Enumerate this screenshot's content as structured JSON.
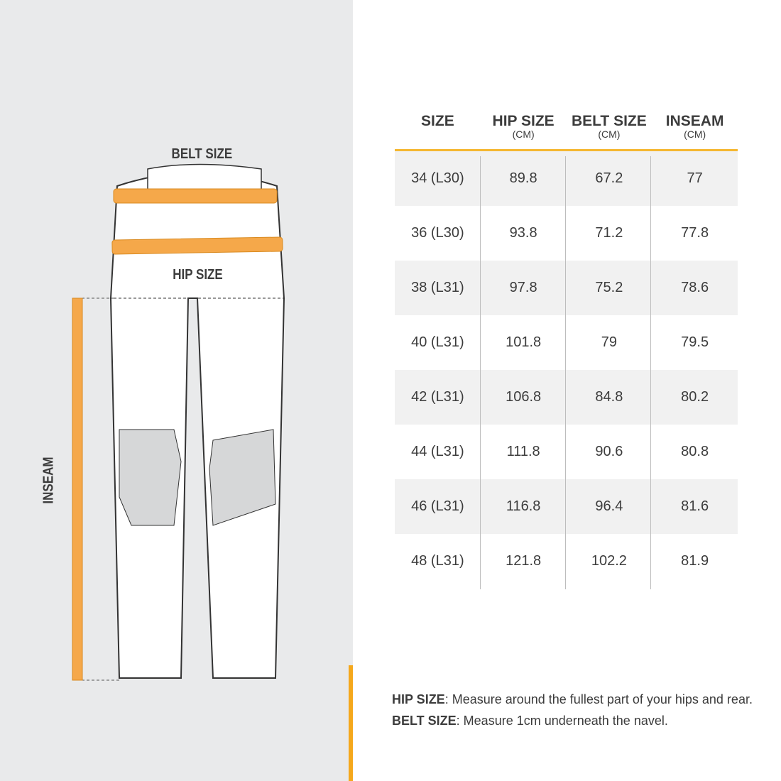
{
  "illustration": {
    "belt_label": "BELT SIZE",
    "hip_label": "HIP SIZE",
    "inseam_label": "INSEAM"
  },
  "colors": {
    "accent": "#f5b731",
    "panel": "#e9eaeb",
    "row_alt": "#f1f1f1"
  },
  "table": {
    "headers": [
      {
        "label": "SIZE",
        "unit": ""
      },
      {
        "label": "HIP SIZE",
        "unit": "(CM)"
      },
      {
        "label": "BELT SIZE",
        "unit": "(CM)"
      },
      {
        "label": "INSEAM",
        "unit": "(CM)"
      }
    ],
    "rows": [
      [
        "34 (L30)",
        "89.8",
        "67.2",
        "77"
      ],
      [
        "36 (L30)",
        "93.8",
        "71.2",
        "77.8"
      ],
      [
        "38 (L31)",
        "97.8",
        "75.2",
        "78.6"
      ],
      [
        "40 (L31)",
        "101.8",
        "79",
        "79.5"
      ],
      [
        "42 (L31)",
        "106.8",
        "84.8",
        "80.2"
      ],
      [
        "44 (L31)",
        "111.8",
        "90.6",
        "80.8"
      ],
      [
        "46 (L31)",
        "116.8",
        "96.4",
        "81.6"
      ],
      [
        "48 (L31)",
        "121.8",
        "102.2",
        "81.9"
      ]
    ]
  },
  "notes": [
    {
      "term": "HIP SIZE",
      "text": ": Measure around the fullest part of your hips and rear."
    },
    {
      "term": "BELT SIZE",
      "text": ": Measure 1cm underneath the navel."
    }
  ]
}
